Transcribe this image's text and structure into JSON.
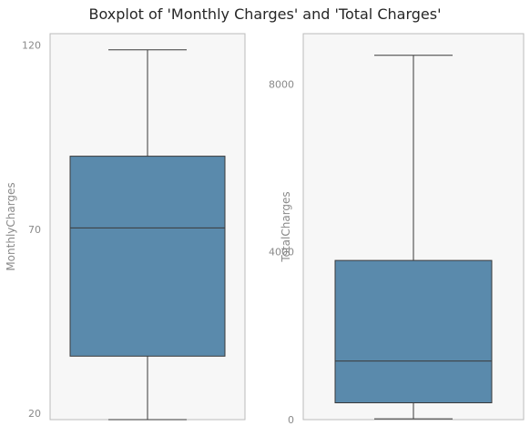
{
  "chart_data": {
    "title": "Boxplot of 'Monthly Charges' and 'Total Charges'",
    "colors": {
      "box": "#5a8aac",
      "line": "#3a3a3a",
      "panel": "#f7f7f7",
      "frame": "#bbbbbb"
    },
    "subplots": [
      {
        "type": "box",
        "ylabel": "MonthlyCharges",
        "ylim": [
          18.25,
          123.15
        ],
        "yticks": [
          20,
          70,
          120
        ],
        "ytick_labels": [
          "20",
          "70",
          "120"
        ],
        "stats": {
          "min": 18.25,
          "q1": 35.5,
          "median": 70.35,
          "q3": 89.85,
          "max": 118.75
        }
      },
      {
        "type": "box",
        "ylabel": "TotalCharges",
        "ylim": [
          0,
          9200
        ],
        "yticks": [
          0,
          4000,
          8000
        ],
        "ytick_labels": [
          "0",
          "4000",
          "8000"
        ],
        "stats": {
          "min": 18.8,
          "q1": 401.4,
          "median": 1397.5,
          "q3": 3794.7,
          "max": 8684.8
        }
      }
    ]
  }
}
